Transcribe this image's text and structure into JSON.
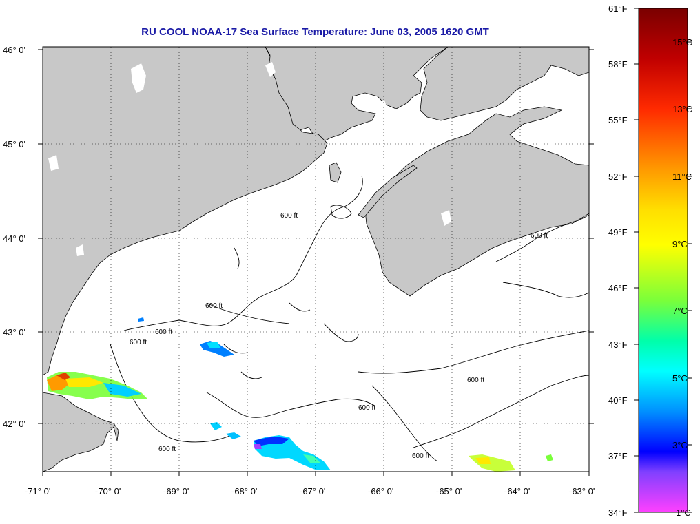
{
  "title": "RU COOL  NOAA-17  Sea Surface Temperature:  June 03, 2005 1620 GMT",
  "map": {
    "lon_range": [
      -71,
      -63
    ],
    "lat_range": [
      41.5,
      46.0
    ],
    "lon_ticks": [
      "-71° 0'",
      "-70° 0'",
      "-69° 0'",
      "-68° 0'",
      "-67° 0'",
      "-66° 0'",
      "-65° 0'",
      "-64° 0'",
      "-63° 0'"
    ],
    "lat_ticks": [
      "46° 0'",
      "45° 0'",
      "44° 0'",
      "43° 0'",
      "42° 0'"
    ],
    "grid": "dotted",
    "land_color": "#c8c8c8",
    "sea_color": "#ffffff",
    "isobath_label": "600 ft"
  },
  "colorbar": {
    "fahrenheit_labels": [
      "61°F",
      "58°F",
      "55°F",
      "52°F",
      "49°F",
      "46°F",
      "43°F",
      "40°F",
      "37°F",
      "34°F"
    ],
    "celsius_labels": [
      "15°C",
      "13°C",
      "11°C",
      "9°C",
      "7°C",
      "5°C",
      "3°C",
      "1°C"
    ],
    "range_f": [
      34,
      61
    ],
    "range_c": [
      1,
      16
    ],
    "colors_top_to_bottom": [
      "#7a0000",
      "#d40000",
      "#ff4000",
      "#ff9a00",
      "#ffff00",
      "#7aff3a",
      "#00ffff",
      "#0080ff",
      "#0000ff",
      "#ff40ff"
    ]
  }
}
